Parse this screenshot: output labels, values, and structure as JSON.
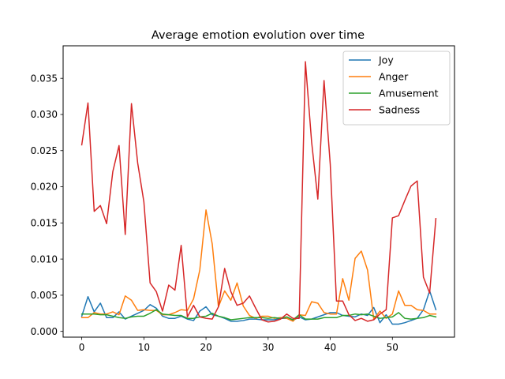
{
  "chart_data": {
    "type": "line",
    "title": "Average emotion evolution over time",
    "xlabel": "",
    "ylabel": "",
    "xlim": [
      -3,
      60
    ],
    "ylim": [
      -0.0008,
      0.0395
    ],
    "xticks": [
      0,
      10,
      20,
      30,
      40,
      50
    ],
    "yticks": [
      0.0,
      0.005,
      0.01,
      0.015,
      0.02,
      0.025,
      0.03,
      0.035
    ],
    "ytick_labels": [
      "0.000",
      "0.005",
      "0.010",
      "0.015",
      "0.020",
      "0.025",
      "0.030",
      "0.035"
    ],
    "grid": false,
    "legend_position": "top-right",
    "x": [
      0,
      1,
      2,
      3,
      4,
      5,
      6,
      7,
      8,
      9,
      10,
      11,
      12,
      13,
      14,
      15,
      16,
      17,
      18,
      19,
      20,
      21,
      22,
      23,
      24,
      25,
      26,
      27,
      28,
      29,
      30,
      31,
      32,
      33,
      34,
      35,
      36,
      37,
      38,
      39,
      40,
      41,
      42,
      43,
      44,
      45,
      46,
      47,
      48,
      49,
      50,
      51,
      52,
      53,
      54,
      55,
      56,
      57
    ],
    "series": [
      {
        "name": "Joy",
        "color": "#1f77b4",
        "values": [
          0.0021,
          0.0048,
          0.0027,
          0.0039,
          0.0019,
          0.0019,
          0.0027,
          0.0017,
          0.0021,
          0.0025,
          0.0029,
          0.0037,
          0.0032,
          0.0021,
          0.0018,
          0.0018,
          0.0021,
          0.0017,
          0.0015,
          0.0028,
          0.0034,
          0.0023,
          0.0021,
          0.0018,
          0.0014,
          0.0014,
          0.0015,
          0.0017,
          0.0017,
          0.0016,
          0.0016,
          0.0016,
          0.0018,
          0.0018,
          0.0015,
          0.002,
          0.0016,
          0.0017,
          0.002,
          0.0023,
          0.0026,
          0.0026,
          0.0022,
          0.0021,
          0.002,
          0.0024,
          0.0022,
          0.0033,
          0.0012,
          0.0023,
          0.001,
          0.001,
          0.0012,
          0.0015,
          0.0018,
          0.003,
          0.0056,
          0.003
        ]
      },
      {
        "name": "Anger",
        "color": "#ff7f0e",
        "values": [
          0.0019,
          0.0019,
          0.0026,
          0.0024,
          0.0024,
          0.0027,
          0.0023,
          0.0049,
          0.0043,
          0.0029,
          0.003,
          0.0029,
          0.0029,
          0.0023,
          0.0023,
          0.0026,
          0.003,
          0.0029,
          0.0045,
          0.0085,
          0.0168,
          0.0121,
          0.0034,
          0.0056,
          0.0043,
          0.0067,
          0.0035,
          0.0022,
          0.0018,
          0.0021,
          0.0021,
          0.0018,
          0.0019,
          0.0018,
          0.0014,
          0.0023,
          0.0022,
          0.0041,
          0.0039,
          0.0026,
          0.0024,
          0.0024,
          0.0073,
          0.0043,
          0.0101,
          0.0111,
          0.0085,
          0.0017,
          0.0028,
          0.0018,
          0.0024,
          0.0056,
          0.0036,
          0.0036,
          0.003,
          0.0029,
          0.0024,
          0.0024
        ]
      },
      {
        "name": "Amusement",
        "color": "#2ca02c",
        "values": [
          0.0024,
          0.0024,
          0.0024,
          0.0023,
          0.0023,
          0.0021,
          0.0019,
          0.0018,
          0.002,
          0.0021,
          0.0021,
          0.0025,
          0.003,
          0.0024,
          0.0023,
          0.0022,
          0.0022,
          0.0018,
          0.0018,
          0.002,
          0.0021,
          0.0025,
          0.0021,
          0.0019,
          0.0016,
          0.0017,
          0.0018,
          0.0019,
          0.0019,
          0.0019,
          0.0018,
          0.0019,
          0.0018,
          0.002,
          0.0016,
          0.0023,
          0.0017,
          0.0017,
          0.0017,
          0.0019,
          0.0019,
          0.0019,
          0.0022,
          0.0022,
          0.0024,
          0.0023,
          0.0024,
          0.0021,
          0.0018,
          0.0019,
          0.002,
          0.0026,
          0.0018,
          0.0017,
          0.0018,
          0.0019,
          0.0022,
          0.002
        ]
      },
      {
        "name": "Sadness",
        "color": "#d62728",
        "values": [
          0.0258,
          0.0316,
          0.0166,
          0.0174,
          0.0149,
          0.0221,
          0.0257,
          0.0134,
          0.0315,
          0.0233,
          0.0179,
          0.0067,
          0.0055,
          0.0028,
          0.0064,
          0.0057,
          0.0119,
          0.002,
          0.0036,
          0.002,
          0.0018,
          0.0017,
          0.0034,
          0.0087,
          0.0055,
          0.0036,
          0.0039,
          0.0049,
          0.0032,
          0.0016,
          0.0013,
          0.0014,
          0.0017,
          0.0024,
          0.0018,
          0.0018,
          0.0373,
          0.0262,
          0.0183,
          0.0347,
          0.0231,
          0.0042,
          0.0042,
          0.0023,
          0.0015,
          0.0018,
          0.0014,
          0.0016,
          0.0024,
          0.003,
          0.0157,
          0.016,
          0.0181,
          0.0201,
          0.0208,
          0.0075,
          0.0053,
          0.0156
        ]
      }
    ]
  }
}
